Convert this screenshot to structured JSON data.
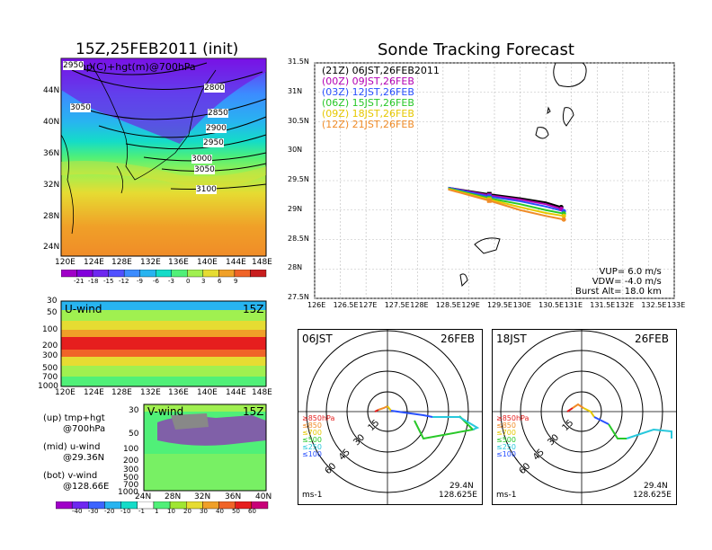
{
  "left_title": "15Z,25FEB2011 (init)",
  "right_title": "Sonde Tracking Forecast",
  "map700": {
    "subtitle": "temp(C)+hgt(m)@700hPa",
    "lat_ticks": [
      "44N",
      "40N",
      "36N",
      "32N",
      "28N",
      "24N"
    ],
    "lon_ticks": [
      "120E",
      "124E",
      "128E",
      "132E",
      "136E",
      "140E",
      "144E",
      "148E"
    ],
    "contour_labels": [
      "2950",
      "2800",
      "3050",
      "2850",
      "2900",
      "2950",
      "3000",
      "3050",
      "3100"
    ],
    "colorbar_labels": [
      "-21",
      "-18",
      "-15",
      "-12",
      "-9",
      "-6",
      "-3",
      "0",
      "3",
      "6",
      "9"
    ],
    "colorbar_colors": [
      "#a000c8",
      "#8200dc",
      "#6e28f0",
      "#5050ff",
      "#3c8cff",
      "#28b4f0",
      "#14dcc8",
      "#50f078",
      "#a0f050",
      "#e6dc32",
      "#f0a028",
      "#f06428",
      "#c81e1e"
    ]
  },
  "uwind": {
    "label": "U-wind",
    "time": "15Z",
    "y_ticks": [
      "30",
      "50",
      "100",
      "200",
      "300",
      "500",
      "700",
      "1000"
    ],
    "x_ticks": [
      "120E",
      "124E",
      "128E",
      "132E",
      "136E",
      "140E",
      "144E",
      "148E"
    ]
  },
  "vwind": {
    "label": "V-wind",
    "time": "15Z",
    "y_ticks": [
      "30",
      "50",
      "100",
      "200",
      "300",
      "500",
      "700",
      "1000"
    ],
    "x_ticks": [
      "24N",
      "28N",
      "32N",
      "36N",
      "40N"
    ]
  },
  "legend_notes": [
    {
      "a": "(up) tmp+hgt",
      "b": "@700hPa"
    },
    {
      "a": "(mid) u-wind",
      "b": "@29.36N"
    },
    {
      "a": "(bot) v-wind",
      "b": "@128.66E"
    }
  ],
  "bottom_colorbar": {
    "labels": [
      "-40",
      "-30",
      "-20",
      "-10",
      "-1",
      "1",
      "10",
      "20",
      "30",
      "40",
      "50",
      "60"
    ],
    "colors": [
      "#a000c8",
      "#6e28f0",
      "#3c64ff",
      "#28b4f0",
      "#14dcc8",
      "#ffffff",
      "#50f078",
      "#a0e632",
      "#e6dc32",
      "#f0a028",
      "#f06428",
      "#e61e1e",
      "#c80078"
    ]
  },
  "track_map": {
    "lat_ticks": [
      "31.5N",
      "31N",
      "30.5N",
      "30N",
      "29.5N",
      "29N",
      "28.5N",
      "28N",
      "27.5N"
    ],
    "lon_ticks": [
      "126E",
      "126.5E",
      "127E",
      "127.5E",
      "128E",
      "128.5E",
      "129E",
      "129.5E",
      "130E",
      "130.5E",
      "131E",
      "131.5E",
      "132E",
      "132.5E",
      "133E"
    ],
    "legend": [
      {
        "text": "(21Z)  06JST,26FEB2011",
        "color": "#000000"
      },
      {
        "text": "(00Z)  09JST,26FEB",
        "color": "#b400b4"
      },
      {
        "text": "(03Z)  12JST,26FEB",
        "color": "#2850ff"
      },
      {
        "text": "(06Z)  15JST,26FEB",
        "color": "#28c828"
      },
      {
        "text": "(09Z)  18JST,26FEB",
        "color": "#e6c800"
      },
      {
        "text": "(12Z)  21JST,26FEB",
        "color": "#f08c28"
      }
    ],
    "params": [
      "VUP=  6.0  m/s",
      "VDW=  -4.0  m/s",
      "Burst Alt=  18.0  km"
    ]
  },
  "hodo1": {
    "time": "06JST",
    "date": "26FEB",
    "rings": [
      "15",
      "30",
      "45",
      "60"
    ],
    "levels": [
      {
        "t": "≥850hPa",
        "c": "#e61e1e"
      },
      {
        "t": "≤850",
        "c": "#f08c28"
      },
      {
        "t": "≤700",
        "c": "#e6c800"
      },
      {
        "t": "≤500",
        "c": "#28c828"
      },
      {
        "t": "≤250",
        "c": "#28c8dc"
      },
      {
        "t": "≤100",
        "c": "#2850ff"
      }
    ],
    "unit": "ms-1",
    "lat": "29.4N",
    "lon": "128.625E"
  },
  "hodo2": {
    "time": "18JST",
    "date": "26FEB",
    "rings": [
      "15",
      "30",
      "45",
      "60"
    ],
    "levels": [
      {
        "t": "≥850hPa",
        "c": "#e61e1e"
      },
      {
        "t": "≤850",
        "c": "#f08c28"
      },
      {
        "t": "≤700",
        "c": "#e6c800"
      },
      {
        "t": "≤500",
        "c": "#28c828"
      },
      {
        "t": "≤250",
        "c": "#28c8dc"
      },
      {
        "t": "≤100",
        "c": "#2850ff"
      }
    ],
    "unit": "ms-1",
    "lat": "29.4N",
    "lon": "128.625E"
  },
  "chart_data": [
    {
      "type": "heatmap",
      "title": "temp(C)+hgt(m)@700hPa",
      "x_ticks": [
        "120E",
        "124E",
        "128E",
        "132E",
        "136E",
        "140E",
        "144E",
        "148E"
      ],
      "y_ticks": [
        "44N",
        "40N",
        "36N",
        "32N",
        "28N",
        "24N"
      ],
      "colorbar": [
        -21,
        -18,
        -15,
        -12,
        -9,
        -6,
        -3,
        0,
        3,
        6,
        9
      ],
      "contours": [
        2800,
        2850,
        2900,
        2950,
        3000,
        3050,
        3100
      ]
    },
    {
      "type": "line",
      "title": "Sonde Tracking Forecast",
      "xlim": [
        126,
        133
      ],
      "ylim": [
        27.5,
        31.5
      ],
      "series": [
        {
          "name": "(21Z)  06JST,26FEB2011",
          "x": [
            128.6,
            129.4,
            130.0,
            130.5,
            130.8
          ],
          "y": [
            29.38,
            29.27,
            29.2,
            29.13,
            29.05
          ]
        },
        {
          "name": "(00Z)  09JST,26FEB",
          "x": [
            128.6,
            129.4,
            130.0,
            130.5,
            130.8
          ],
          "y": [
            29.38,
            29.25,
            29.18,
            29.1,
            29.02
          ]
        },
        {
          "name": "(03Z)  12JST,26FEB",
          "x": [
            128.6,
            129.4,
            130.0,
            130.5,
            130.85
          ],
          "y": [
            29.38,
            29.23,
            29.15,
            29.06,
            28.98
          ]
        },
        {
          "name": "(06Z)  15JST,26FEB",
          "x": [
            128.6,
            129.4,
            130.0,
            130.5,
            130.85
          ],
          "y": [
            29.37,
            29.2,
            29.1,
            29.0,
            28.94
          ]
        },
        {
          "name": "(09Z)  18JST,26FEB",
          "x": [
            128.6,
            129.4,
            130.0,
            130.5,
            130.85
          ],
          "y": [
            29.36,
            29.18,
            29.05,
            28.95,
            28.9
          ]
        },
        {
          "name": "(12Z)  21JST,26FEB",
          "x": [
            128.6,
            129.4,
            130.0,
            130.5,
            130.85
          ],
          "y": [
            29.35,
            29.16,
            29.0,
            28.9,
            28.84
          ]
        }
      ]
    },
    {
      "type": "heatmap",
      "title": "U-wind",
      "y_ticks": [
        30,
        50,
        100,
        200,
        300,
        500,
        700,
        1000
      ],
      "x_ticks": [
        "120E",
        "124E",
        "128E",
        "132E",
        "136E",
        "140E",
        "144E",
        "148E"
      ]
    },
    {
      "type": "heatmap",
      "title": "V-wind",
      "y_ticks": [
        30,
        50,
        100,
        200,
        300,
        500,
        700,
        1000
      ],
      "x_ticks": [
        "24N",
        "28N",
        "32N",
        "36N",
        "40N"
      ]
    }
  ]
}
